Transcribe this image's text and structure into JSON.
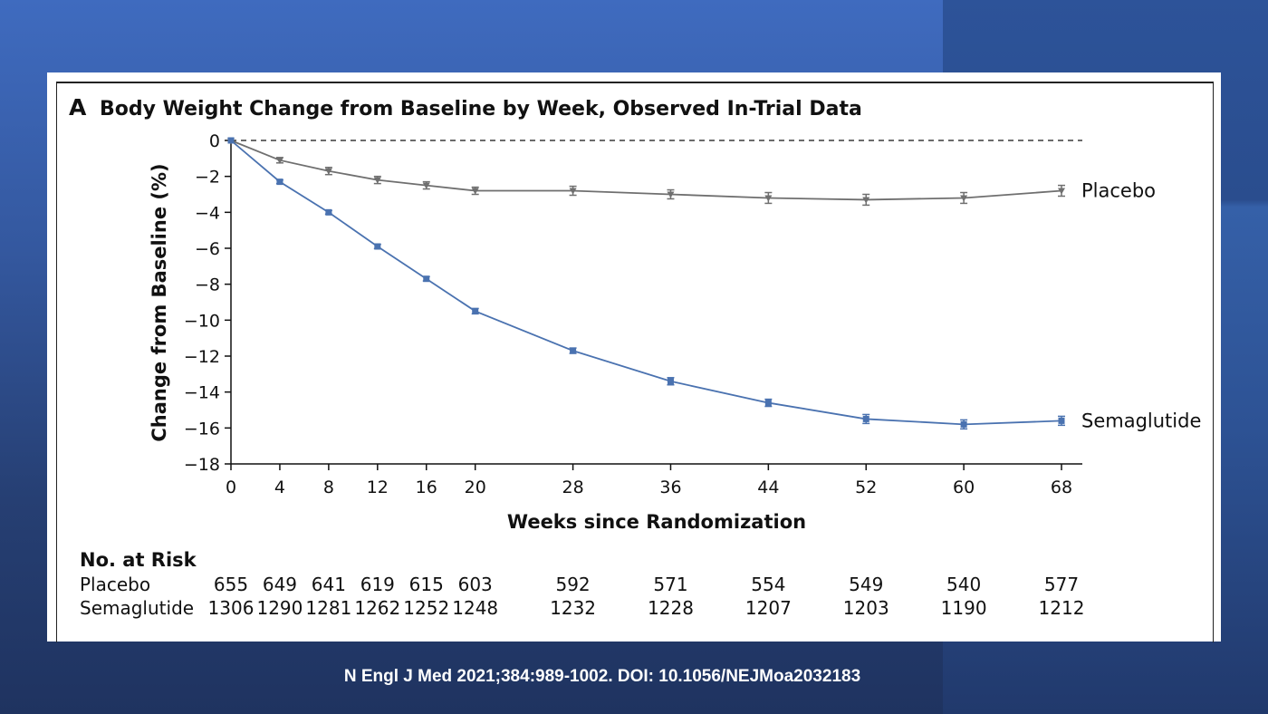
{
  "caption": "N Engl J Med 2021;384:989-1002. DOI: 10.1056/NEJMoa2032183",
  "panel_letter": "A",
  "colors": {
    "semaglutide": "#4a72b0",
    "placebo": "#6f6f6f"
  },
  "chart_data": {
    "type": "line",
    "title": "Body Weight Change from Baseline by Week, Observed In-Trial Data",
    "xlabel": "Weeks since Randomization",
    "ylabel": "Change from Baseline (%)",
    "x": [
      0,
      4,
      8,
      12,
      16,
      20,
      28,
      36,
      44,
      52,
      60,
      68
    ],
    "x_tick_labels": [
      "0",
      "4",
      "8",
      "12",
      "16",
      "20",
      "28",
      "36",
      "44",
      "52",
      "60",
      "68"
    ],
    "y_tick_values": [
      0,
      -2,
      -4,
      -6,
      -8,
      -10,
      -12,
      -14,
      -16,
      -18
    ],
    "y_tick_labels": [
      "0",
      "−2",
      "−4",
      "−6",
      "−8",
      "−10",
      "−12",
      "−14",
      "−16",
      "−18"
    ],
    "ylim": [
      -18,
      0
    ],
    "xlim": [
      0,
      68
    ],
    "reference_line": 0,
    "series": [
      {
        "name": "Placebo",
        "values": [
          0,
          -1.1,
          -1.7,
          -2.2,
          -2.5,
          -2.8,
          -2.8,
          -3.0,
          -3.2,
          -3.3,
          -3.2,
          -2.8
        ],
        "error": [
          0,
          0.15,
          0.2,
          0.2,
          0.2,
          0.2,
          0.25,
          0.25,
          0.3,
          0.3,
          0.3,
          0.3
        ]
      },
      {
        "name": "Semaglutide",
        "values": [
          0,
          -2.3,
          -4.0,
          -5.9,
          -7.7,
          -9.5,
          -11.7,
          -13.4,
          -14.6,
          -15.5,
          -15.8,
          -15.6
        ],
        "error": [
          0,
          0.1,
          0.1,
          0.12,
          0.12,
          0.15,
          0.15,
          0.2,
          0.2,
          0.25,
          0.25,
          0.25
        ]
      }
    ],
    "risk_table": {
      "heading": "No. at Risk",
      "rows": [
        {
          "label": "Placebo",
          "values": [
            "655",
            "649",
            "641",
            "619",
            "615",
            "603",
            "592",
            "571",
            "554",
            "549",
            "540",
            "577"
          ]
        },
        {
          "label": "Semaglutide",
          "values": [
            "1306",
            "1290",
            "1281",
            "1262",
            "1252",
            "1248",
            "1232",
            "1228",
            "1207",
            "1203",
            "1190",
            "1212"
          ]
        }
      ]
    }
  }
}
